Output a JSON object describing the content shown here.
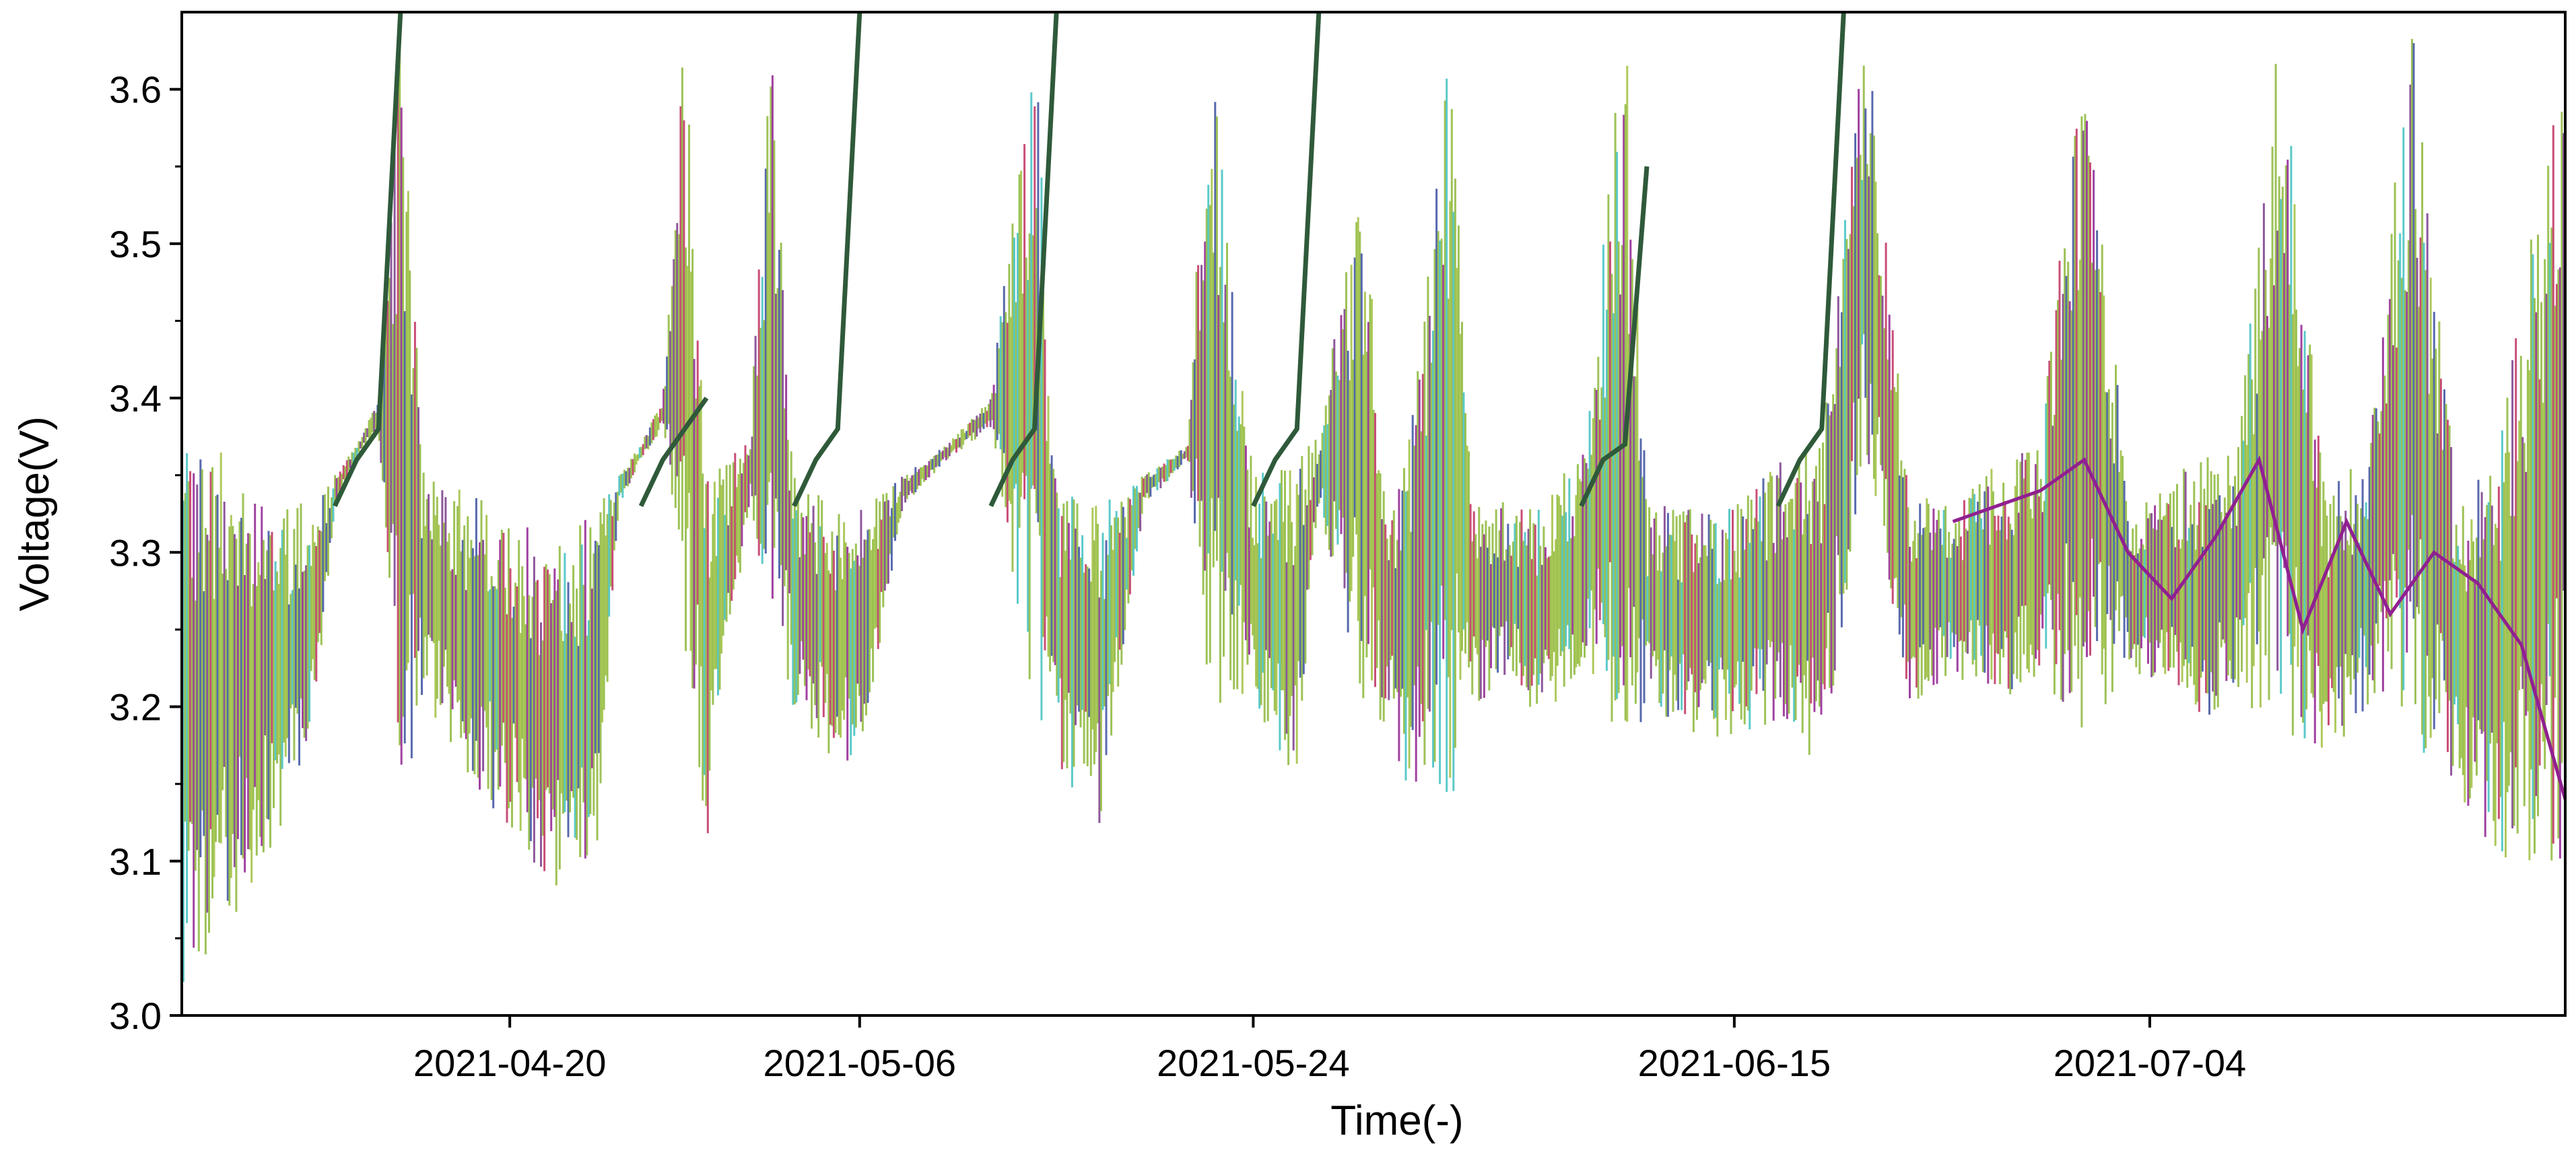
{
  "chart_data": {
    "type": "line",
    "title": "",
    "xlabel": "Time(-)",
    "ylabel": "Voltage(V)",
    "ylim": [
      3.0,
      3.65
    ],
    "xlim": [
      "2021-04-05",
      "2021-07-23"
    ],
    "y_ticks": [
      "3.0",
      "3.1",
      "3.2",
      "3.3",
      "3.4",
      "3.5",
      "3.6"
    ],
    "x_ticks": [
      "2021-04-20",
      "2021-05-06",
      "2021-05-24",
      "2021-06-15",
      "2021-07-04"
    ],
    "grid": false,
    "legend": "none",
    "series_colors": [
      "#8db83a",
      "#a0c040",
      "#7a3a8a",
      "#3a4fa0",
      "#c03060",
      "#40c0c0",
      "#902090"
    ],
    "envelope": {
      "x": [
        "2021-04-05",
        "2021-04-07",
        "2021-04-09",
        "2021-04-11",
        "2021-04-12",
        "2021-04-13",
        "2021-04-14",
        "2021-04-15",
        "2021-04-16",
        "2021-04-17",
        "2021-04-18",
        "2021-04-20",
        "2021-04-22",
        "2021-04-24",
        "2021-04-25",
        "2021-04-26",
        "2021-04-27",
        "2021-04-28",
        "2021-04-29",
        "2021-04-30",
        "2021-05-01",
        "2021-05-02",
        "2021-05-03",
        "2021-05-04",
        "2021-05-05",
        "2021-05-06",
        "2021-05-08",
        "2021-05-10",
        "2021-05-12",
        "2021-05-14",
        "2021-05-15",
        "2021-05-17",
        "2021-05-19",
        "2021-05-21",
        "2021-05-22",
        "2021-05-24",
        "2021-05-26",
        "2021-05-27",
        "2021-05-29",
        "2021-05-30",
        "2021-05-31",
        "2021-06-02",
        "2021-06-03",
        "2021-06-05",
        "2021-06-06",
        "2021-06-08",
        "2021-06-10",
        "2021-06-11",
        "2021-06-13",
        "2021-06-15",
        "2021-06-17",
        "2021-06-19",
        "2021-06-21",
        "2021-06-23",
        "2021-06-25",
        "2021-06-27",
        "2021-06-29",
        "2021-07-01",
        "2021-07-03",
        "2021-07-04",
        "2021-07-06",
        "2021-07-08",
        "2021-07-10",
        "2021-07-12",
        "2021-07-14",
        "2021-07-16",
        "2021-07-18",
        "2021-07-20",
        "2021-07-23"
      ],
      "upper": [
        3.38,
        3.37,
        3.34,
        3.33,
        3.35,
        3.37,
        3.4,
        3.65,
        3.36,
        3.35,
        3.34,
        3.33,
        3.3,
        3.33,
        3.35,
        3.37,
        3.4,
        3.65,
        3.37,
        3.36,
        3.38,
        3.65,
        3.35,
        3.34,
        3.33,
        3.33,
        3.35,
        3.37,
        3.4,
        3.65,
        3.34,
        3.33,
        3.35,
        3.37,
        3.65,
        3.35,
        3.36,
        3.38,
        3.55,
        3.35,
        3.36,
        3.65,
        3.34,
        3.33,
        3.34,
        3.36,
        3.65,
        3.33,
        3.33,
        3.33,
        3.36,
        3.37,
        3.65,
        3.34,
        3.33,
        3.36,
        3.37,
        3.65,
        3.34,
        3.34,
        3.36,
        3.37,
        3.65,
        3.34,
        3.37,
        3.65,
        3.34,
        3.37,
        3.65
      ],
      "lower": [
        3.02,
        3.05,
        3.1,
        3.18,
        3.33,
        3.36,
        3.38,
        3.13,
        3.2,
        3.18,
        3.15,
        3.12,
        3.07,
        3.11,
        3.33,
        3.36,
        3.38,
        3.23,
        3.1,
        3.23,
        3.33,
        3.22,
        3.2,
        3.18,
        3.16,
        3.16,
        3.33,
        3.36,
        3.38,
        3.18,
        3.16,
        3.12,
        3.33,
        3.36,
        3.2,
        3.2,
        3.15,
        3.33,
        3.2,
        3.18,
        3.15,
        3.13,
        3.2,
        3.22,
        3.18,
        3.22,
        3.15,
        3.2,
        3.18,
        3.18,
        3.19,
        3.16,
        3.36,
        3.2,
        3.22,
        3.2,
        3.22,
        3.18,
        3.22,
        3.22,
        3.19,
        3.2,
        3.18,
        3.16,
        3.2,
        3.18,
        3.14,
        3.1,
        3.1
      ]
    },
    "charge_steps": {
      "x": [
        "2021-04-12",
        "2021-04-13",
        "2021-04-14",
        "2021-04-15",
        "2021-04-26",
        "2021-04-27",
        "2021-04-28",
        "2021-04-29",
        "2021-05-03",
        "2021-05-04",
        "2021-05-05",
        "2021-05-06",
        "2021-05-12",
        "2021-05-13",
        "2021-05-14",
        "2021-05-15",
        "2021-05-24",
        "2021-05-25",
        "2021-05-26",
        "2021-05-27",
        "2021-06-08",
        "2021-06-09",
        "2021-06-10",
        "2021-06-11",
        "2021-06-17",
        "2021-06-18",
        "2021-06-19",
        "2021-06-20"
      ],
      "y": [
        3.33,
        3.36,
        3.38,
        3.65,
        3.33,
        3.36,
        3.38,
        3.4,
        3.33,
        3.36,
        3.38,
        3.65,
        3.33,
        3.36,
        3.38,
        3.65,
        3.33,
        3.36,
        3.38,
        3.65,
        3.33,
        3.36,
        3.37,
        3.55,
        3.33,
        3.36,
        3.38,
        3.65
      ]
    },
    "outlier_cell": {
      "name": "",
      "x": [
        "2021-06-25",
        "2021-06-27",
        "2021-06-29",
        "2021-07-01",
        "2021-07-03",
        "2021-07-05",
        "2021-07-07",
        "2021-07-09",
        "2021-07-11",
        "2021-07-13",
        "2021-07-15",
        "2021-07-17",
        "2021-07-19",
        "2021-07-21",
        "2021-07-23"
      ],
      "y": [
        3.32,
        3.33,
        3.34,
        3.36,
        3.3,
        3.27,
        3.31,
        3.36,
        3.25,
        3.32,
        3.26,
        3.3,
        3.28,
        3.24,
        3.14
      ]
    }
  }
}
